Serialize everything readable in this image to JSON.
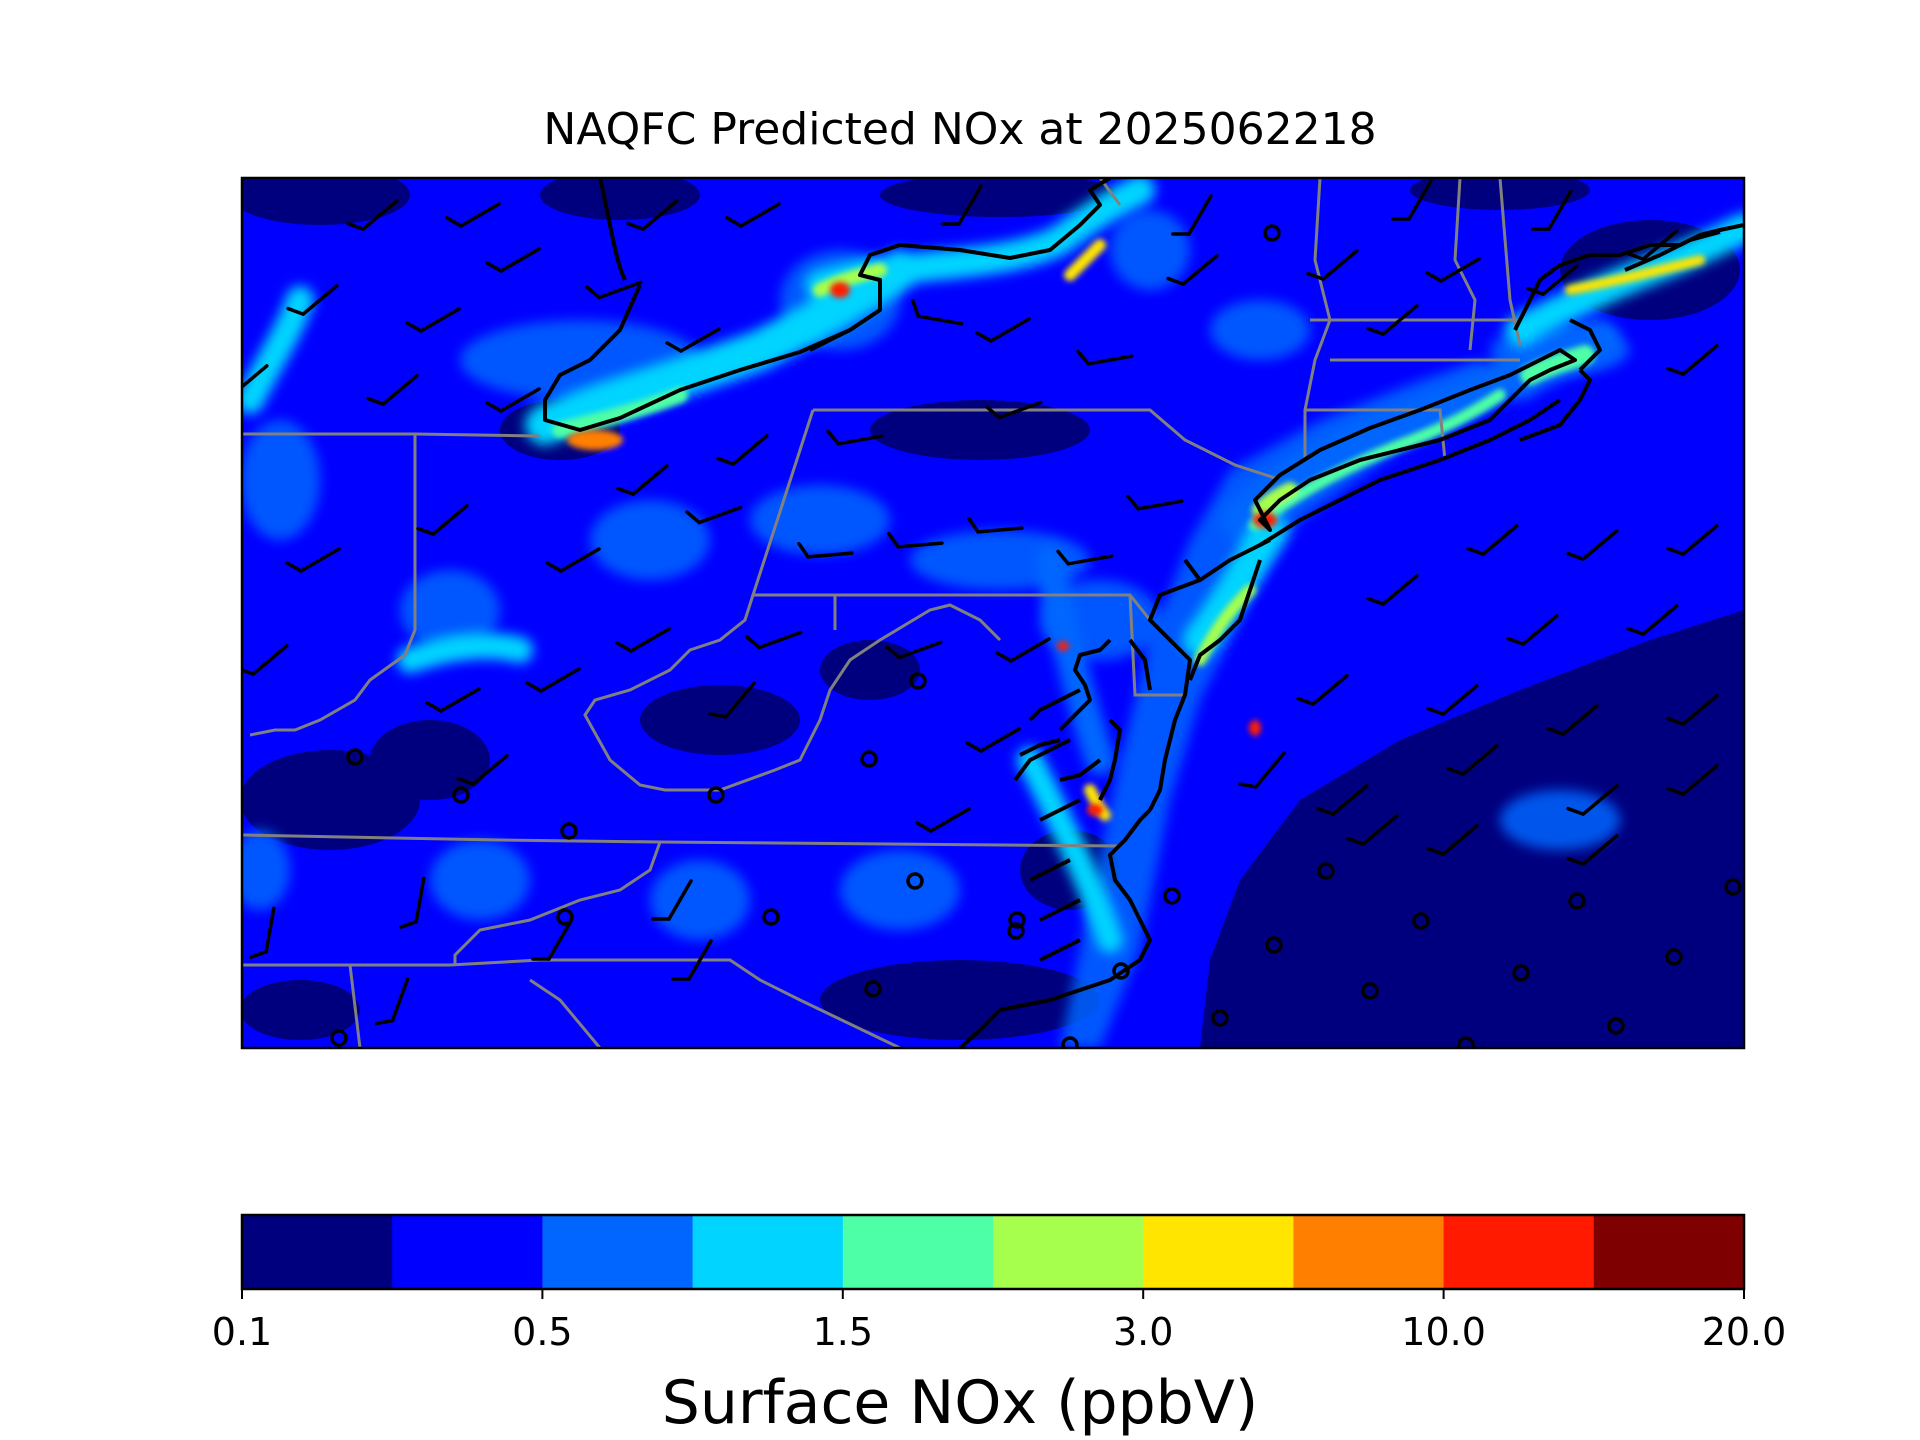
{
  "title": "NAQFC Predicted NOx at 2025062218",
  "colorbar": {
    "label": "Surface NOx (ppbV)",
    "colors": [
      "#00007f",
      "#0000ff",
      "#0066ff",
      "#00d4ff",
      "#4dffa6",
      "#a6ff4d",
      "#ffe500",
      "#ff7f00",
      "#ff1a00",
      "#7f0000"
    ],
    "ticks": [
      {
        "label": "0.1",
        "index": 0
      },
      {
        "label": "0.5",
        "index": 2
      },
      {
        "label": "1.5",
        "index": 4
      },
      {
        "label": "3.0",
        "index": 6
      },
      {
        "label": "10.0",
        "index": 8
      },
      {
        "label": "20.0",
        "index": 10
      }
    ]
  },
  "map": {
    "ocean_color": "#00007f",
    "land_color": "#0000ff",
    "coastline_color": "#000000",
    "state_border_color": "#808080",
    "wind_barb_color": "#000000"
  }
}
